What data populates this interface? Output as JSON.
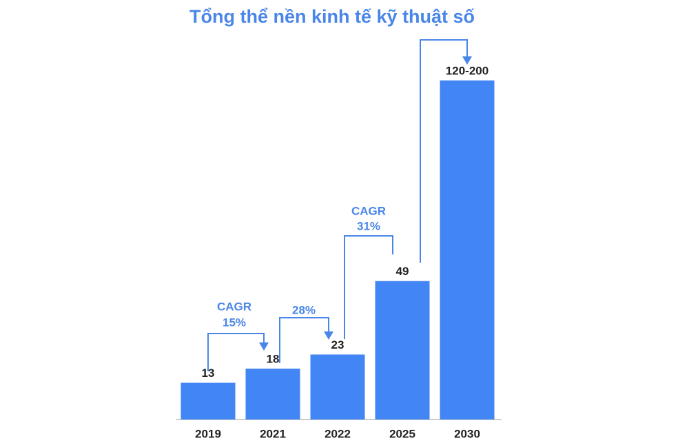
{
  "chart_data": {
    "type": "bar",
    "title": "Tổng thể nền kinh tế kỹ thuật số",
    "categories": [
      "2019",
      "2021",
      "2022",
      "2025",
      "2030"
    ],
    "values": [
      13,
      18,
      23,
      49,
      120
    ],
    "value_labels": [
      "13",
      "18",
      "23",
      "49",
      "120-200"
    ],
    "color": "#4285f4",
    "ylim": [
      0,
      120
    ],
    "annotations": [
      [
        "CAGR",
        "15%"
      ],
      [
        "28%"
      ],
      [
        "CAGR",
        "31%"
      ]
    ]
  }
}
